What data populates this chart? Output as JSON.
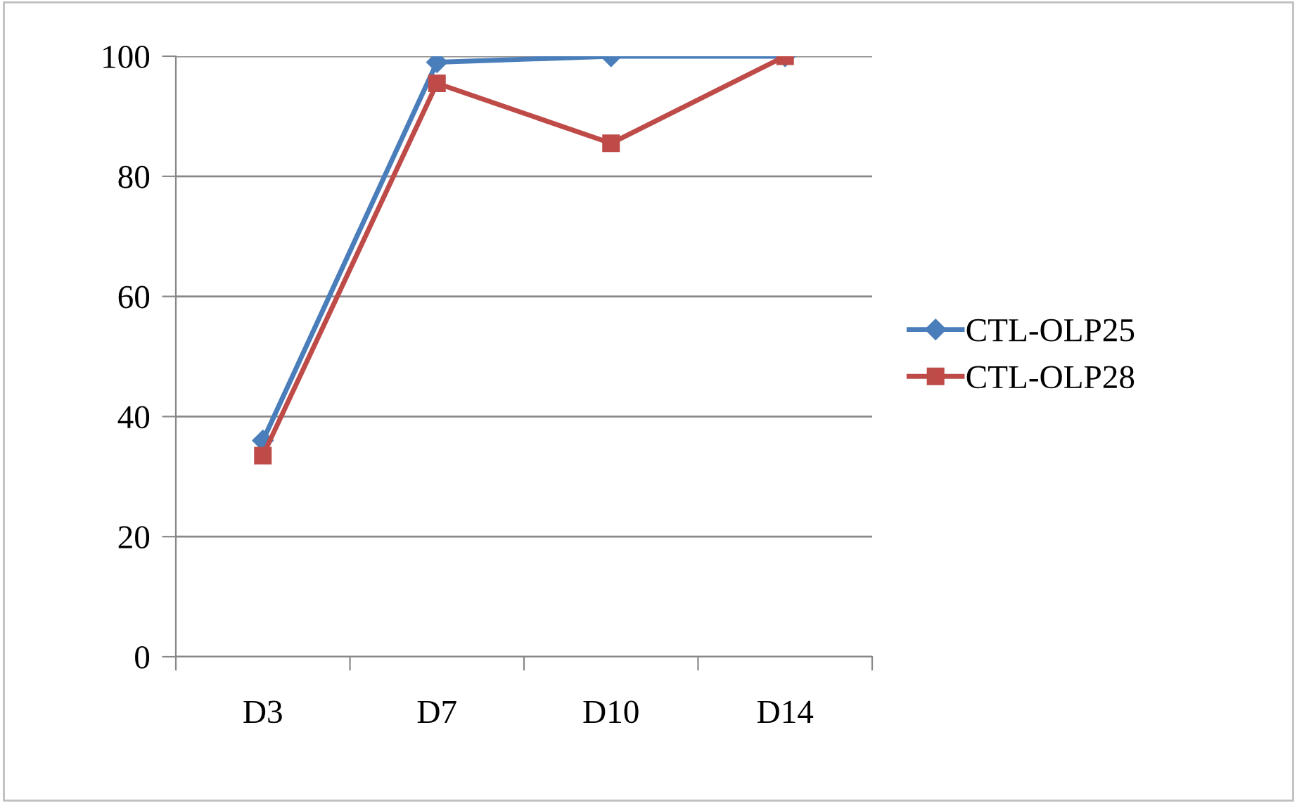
{
  "chart_data": {
    "type": "line",
    "categories": [
      "D3",
      "D7",
      "D10",
      "D14"
    ],
    "series": [
      {
        "name": "CTL-OLP25",
        "color": "#4a7ebb",
        "marker": "diamond",
        "values": [
          36,
          99,
          100,
          100
        ]
      },
      {
        "name": "CTL-OLP28",
        "color": "#be4b48",
        "marker": "square",
        "values": [
          33.5,
          95.5,
          85.5,
          100
        ]
      }
    ],
    "ylim": [
      0,
      100
    ],
    "yticks": [
      0,
      20,
      40,
      60,
      80,
      100
    ],
    "grid": "y",
    "legend": "right",
    "line_style": "solid"
  }
}
